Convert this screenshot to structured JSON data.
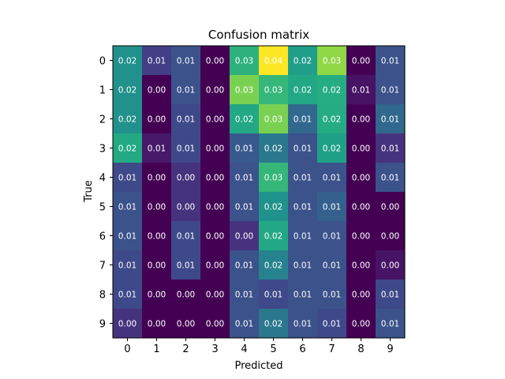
{
  "chart_data": {
    "type": "heatmap",
    "title": "Confusion matrix",
    "xlabel": "Predicted",
    "ylabel": "True",
    "x_categories": [
      "0",
      "1",
      "2",
      "3",
      "4",
      "5",
      "6",
      "7",
      "8",
      "9"
    ],
    "y_categories": [
      "0",
      "1",
      "2",
      "3",
      "4",
      "5",
      "6",
      "7",
      "8",
      "9"
    ],
    "values": [
      [
        0.02,
        0.01,
        0.01,
        0.0,
        0.03,
        0.04,
        0.02,
        0.03,
        0.0,
        0.01
      ],
      [
        0.02,
        0.0,
        0.01,
        0.0,
        0.03,
        0.03,
        0.02,
        0.02,
        0.01,
        0.01
      ],
      [
        0.02,
        0.0,
        0.01,
        0.0,
        0.02,
        0.03,
        0.01,
        0.02,
        0.0,
        0.01
      ],
      [
        0.02,
        0.01,
        0.01,
        0.0,
        0.01,
        0.02,
        0.01,
        0.02,
        0.0,
        0.01
      ],
      [
        0.01,
        0.0,
        0.0,
        0.0,
        0.01,
        0.03,
        0.01,
        0.01,
        0.0,
        0.01
      ],
      [
        0.01,
        0.0,
        0.0,
        0.0,
        0.01,
        0.02,
        0.01,
        0.01,
        0.0,
        0.0
      ],
      [
        0.01,
        0.0,
        0.01,
        0.0,
        0.0,
        0.02,
        0.01,
        0.01,
        0.0,
        0.0
      ],
      [
        0.01,
        0.0,
        0.01,
        0.0,
        0.01,
        0.02,
        0.01,
        0.01,
        0.0,
        0.0
      ],
      [
        0.01,
        0.0,
        0.0,
        0.0,
        0.01,
        0.01,
        0.01,
        0.01,
        0.0,
        0.01
      ],
      [
        0.0,
        0.0,
        0.0,
        0.0,
        0.01,
        0.02,
        0.01,
        0.01,
        0.0,
        0.01
      ]
    ],
    "cell_colors": [
      [
        "#21918c",
        "#433e85",
        "#3b528b",
        "#440154",
        "#2db27d",
        "#fde725",
        "#1f9e89",
        "#8fd744",
        "#440154",
        "#3b528b"
      ],
      [
        "#21918c",
        "#440154",
        "#3b528b",
        "#440154",
        "#7ad151",
        "#35b779",
        "#22a884",
        "#26ad81",
        "#471365",
        "#3b528b"
      ],
      [
        "#21918c",
        "#440154",
        "#3e4989",
        "#440154",
        "#22a884",
        "#7ad151",
        "#31688e",
        "#25ac82",
        "#440154",
        "#31688e"
      ],
      [
        "#23a983",
        "#48186a",
        "#3e4989",
        "#440154",
        "#38598c",
        "#2a788e",
        "#3b528b",
        "#1fa187",
        "#440154",
        "#46337e"
      ],
      [
        "#3e4989",
        "#440154",
        "#46337e",
        "#440154",
        "#3b528b",
        "#35b779",
        "#3b528b",
        "#3b528b",
        "#440154",
        "#3b528b"
      ],
      [
        "#3b528b",
        "#440154",
        "#46337e",
        "#440154",
        "#3b528b",
        "#20928c",
        "#3b528b",
        "#355f8d",
        "#440154",
        "#440154"
      ],
      [
        "#3b528b",
        "#440154",
        "#3e4989",
        "#440154",
        "#46327e",
        "#22a884",
        "#3b528b",
        "#3b528b",
        "#440154",
        "#440154"
      ],
      [
        "#3e4989",
        "#440154",
        "#3e4989",
        "#440154",
        "#3b528b",
        "#26828e",
        "#3b528b",
        "#3b528b",
        "#440154",
        "#471365"
      ],
      [
        "#3e4989",
        "#440154",
        "#440154",
        "#440154",
        "#3b528b",
        "#3e4989",
        "#3b528b",
        "#3b528b",
        "#440154",
        "#3e4989"
      ],
      [
        "#46337e",
        "#440154",
        "#440154",
        "#440154",
        "#3b528b",
        "#2a788e",
        "#3b528b",
        "#3e4989",
        "#440154",
        "#3b528b"
      ]
    ],
    "colormap": "viridis",
    "grid": false
  }
}
